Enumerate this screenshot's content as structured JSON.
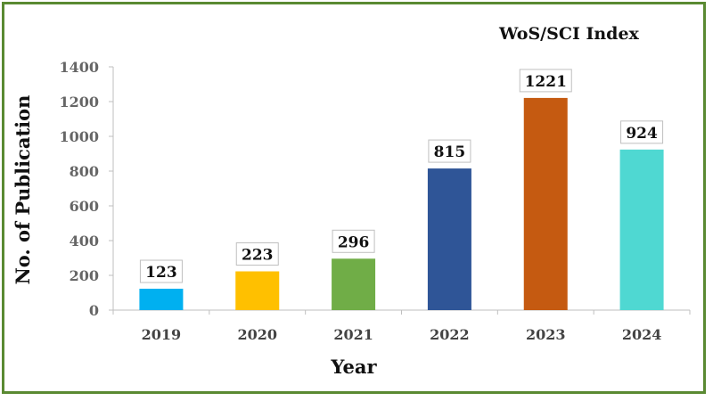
{
  "chart_data": {
    "type": "bar",
    "title": "WoS/SCI Index",
    "xlabel": "Year",
    "ylabel": "No. of Publication",
    "categories": [
      "2019",
      "2020",
      "2021",
      "2022",
      "2023",
      "2024"
    ],
    "values": [
      123,
      223,
      296,
      815,
      1221,
      924
    ],
    "data_labels": [
      "123",
      "223",
      "296",
      "815",
      "1221",
      "924"
    ],
    "colors": [
      "#00b0f0",
      "#ffc000",
      "#70ad47",
      "#2f5597",
      "#c55a11",
      "#4fd8d2"
    ],
    "ylim": [
      0,
      1400
    ],
    "yticks": [
      "0",
      "200",
      "400",
      "600",
      "800",
      "1000",
      "1200",
      "1400"
    ],
    "grid": false,
    "legend": "none",
    "frame_color": "#5a8a32"
  }
}
